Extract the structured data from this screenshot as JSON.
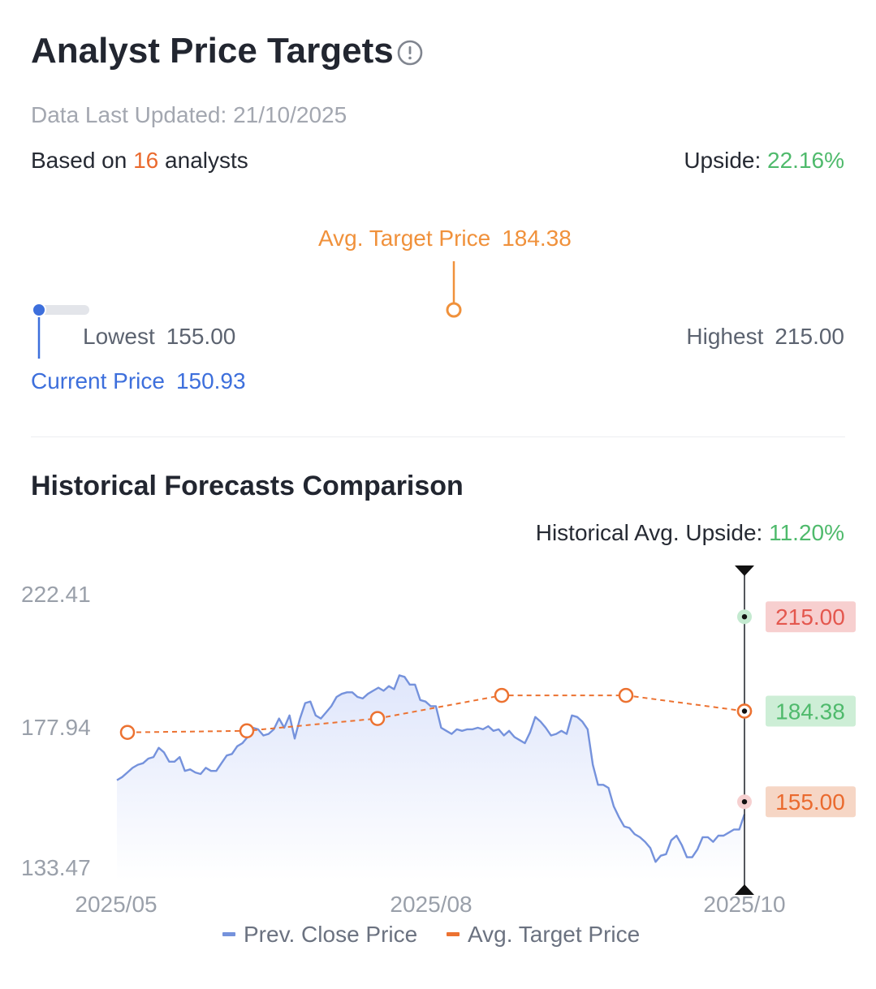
{
  "header": {
    "title": "Analyst Price Targets",
    "info_icon": "info-circle-icon",
    "updated_label": "Data Last Updated:",
    "updated_value": "21/10/2025",
    "based_prefix": "Based on",
    "analyst_count": "16",
    "based_suffix": "analysts",
    "upside_label": "Upside:",
    "upside_value": "22.16%"
  },
  "range": {
    "avg_label": "Avg. Target Price",
    "avg_value": "184.38",
    "lowest_label": "Lowest",
    "lowest_value": "155.00",
    "highest_label": "Highest",
    "highest_value": "215.00",
    "current_label": "Current Price",
    "current_value": "150.93"
  },
  "history": {
    "title": "Historical Forecasts Comparison",
    "avg_upside_label": "Historical Avg. Upside:",
    "avg_upside_value": "11.20%"
  },
  "colors": {
    "current": "#3d6fdc",
    "avg": "#f0913b",
    "upside": "#4fba6c",
    "lowest": "#e4574e",
    "highest": "#5cc276"
  },
  "chart_data": {
    "type": "line",
    "x_tick_labels": [
      "2025/05",
      "2025/08",
      "2025/10"
    ],
    "y_tick_labels": [
      "222.41",
      "177.94",
      "133.47"
    ],
    "ylim": [
      133.47,
      222.41
    ],
    "legend": [
      "Prev. Close Price",
      "Avg. Target Price"
    ],
    "legend_placement": "bottom",
    "series": [
      {
        "name": "Prev. Close Price",
        "color": "#7592dc",
        "values": [
          162,
          163,
          164.5,
          166,
          167,
          167.5,
          169,
          169.5,
          172.5,
          171,
          168,
          168,
          169.5,
          165,
          165.5,
          164.5,
          164,
          166,
          165,
          165,
          167.5,
          170,
          170.5,
          173,
          174,
          176,
          179,
          178.5,
          176.5,
          177,
          178.5,
          182,
          179,
          183,
          175.5,
          182,
          187,
          187.5,
          183,
          182,
          184,
          186,
          189,
          190,
          190.5,
          190.5,
          189,
          188.5,
          190,
          191,
          192,
          191,
          192.5,
          191.5,
          196,
          195.5,
          193,
          193,
          188,
          187.5,
          186,
          186,
          179,
          178,
          177,
          178.5,
          178,
          178.5,
          178.5,
          179,
          178.5,
          179.5,
          178,
          178.5,
          176.5,
          178,
          176,
          175,
          174,
          177.5,
          182.5,
          181,
          179,
          176.5,
          177,
          178,
          177,
          183,
          182.5,
          181,
          178.5,
          167,
          160.5,
          160.5,
          159.5,
          153.5,
          150,
          147,
          146.5,
          144.5,
          143.5,
          142,
          140,
          135.5,
          137.5,
          138,
          142.5,
          144,
          141,
          137,
          137,
          139.5,
          143.5,
          143.5,
          142,
          144,
          144,
          145,
          146,
          146,
          150.93
        ]
      },
      {
        "name": "Avg. Target Price",
        "color": "#ec7231",
        "values": [
          177.5,
          178,
          182,
          189.5,
          189.5,
          184.38
        ]
      }
    ],
    "latest_markers": [
      {
        "label": "215.00",
        "value": 215.0
      },
      {
        "label": "184.38",
        "value": 184.38
      },
      {
        "label": "155.00",
        "value": 155.0
      }
    ]
  }
}
